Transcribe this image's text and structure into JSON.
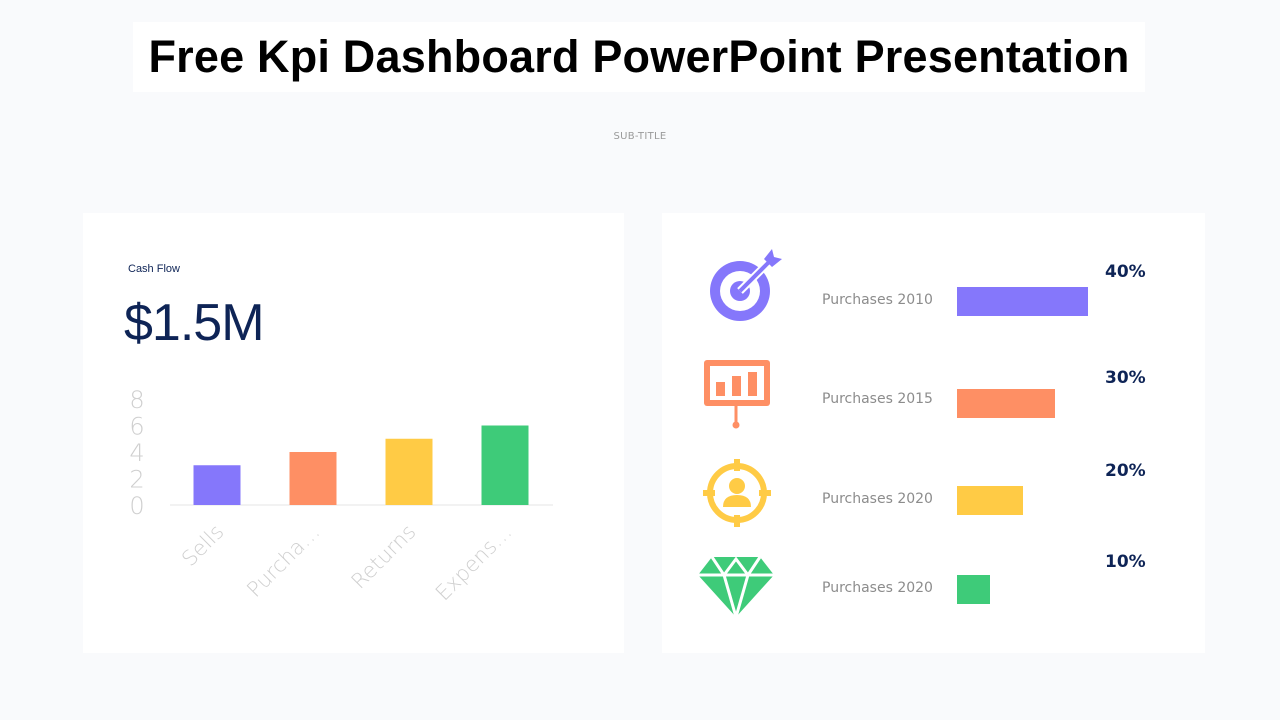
{
  "title": "Free Kpi Dashboard PowerPoint Presentation",
  "subtitle": "SUB-TITLE",
  "cash_flow": {
    "label": "Cash Flow",
    "value": "$1.5M"
  },
  "chart_data": {
    "type": "bar",
    "categories": [
      "Sells",
      "Purcha…",
      "Returns",
      "Expens…"
    ],
    "values": [
      3,
      4,
      5,
      6
    ],
    "colors": [
      "#8577fb",
      "#fe8f64",
      "#ffcb45",
      "#3ecb79"
    ],
    "yticks": [
      "0",
      "2",
      "4",
      "6",
      "8"
    ],
    "ylim": [
      0,
      8
    ],
    "title": "",
    "xlabel": "",
    "ylabel": "",
    "grid": false,
    "legend": "none"
  },
  "kpis": [
    {
      "icon": "target-dart-icon",
      "label": "Purchases 2010",
      "percent_label": "40%",
      "value": 40,
      "color": "#8577fb"
    },
    {
      "icon": "presentation-board-icon",
      "label": "Purchases 2015",
      "percent_label": "30%",
      "value": 30,
      "color": "#fe8f64"
    },
    {
      "icon": "user-target-icon",
      "label": "Purchases 2020",
      "percent_label": "20%",
      "value": 20,
      "color": "#ffcb45"
    },
    {
      "icon": "diamond-icon",
      "label": "Purchases 2020",
      "percent_label": "10%",
      "value": 10,
      "color": "#3ecb79"
    }
  ]
}
